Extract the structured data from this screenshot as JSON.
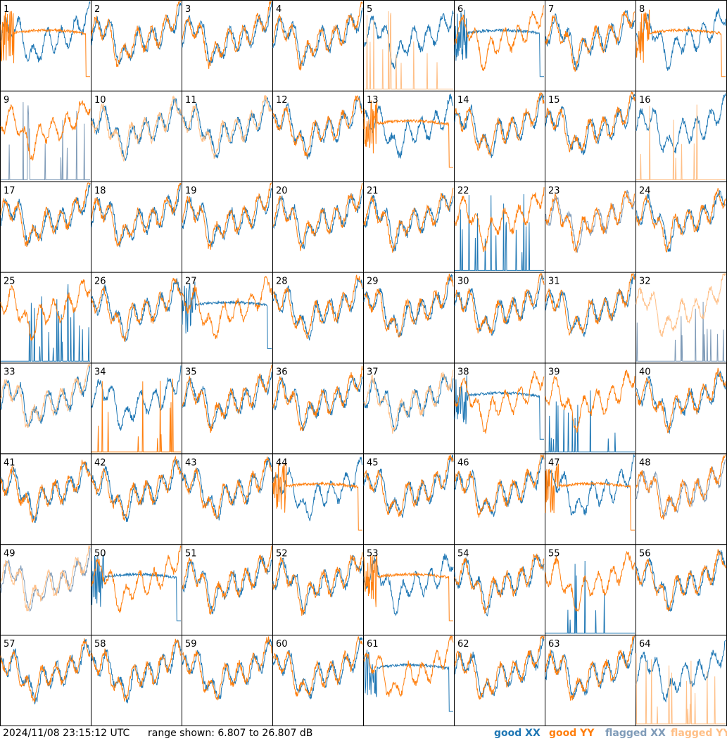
{
  "footer": {
    "timestamp": "2024/11/08 23:15:12 UTC",
    "range_text": "range shown: 6.807 to 26.807 dB"
  },
  "legend": [
    {
      "key": "good_xx",
      "label": "good XX",
      "color": "#1f77b4"
    },
    {
      "key": "good_yy",
      "label": "good YY",
      "color": "#ff7f0e"
    },
    {
      "key": "flagged_xx",
      "label": "flagged XX",
      "color": "#7f9bb8"
    },
    {
      "key": "flagged_yy",
      "label": "flagged YY",
      "color": "#ffbf86"
    }
  ],
  "chart_data": {
    "type": "line",
    "grid_rows": 8,
    "grid_cols": 8,
    "ylim_db": [
      6.807,
      26.807
    ],
    "panels": [
      {
        "id": "1",
        "xx": "good",
        "yy": "good",
        "xx_mode": "normal",
        "yy_mode": "smooth"
      },
      {
        "id": "2",
        "xx": "good",
        "yy": "good",
        "xx_mode": "normal",
        "yy_mode": "normal"
      },
      {
        "id": "3",
        "xx": "good",
        "yy": "good",
        "xx_mode": "normal",
        "yy_mode": "normal"
      },
      {
        "id": "4",
        "xx": "good",
        "yy": "good",
        "xx_mode": "normal",
        "yy_mode": "normal"
      },
      {
        "id": "5",
        "xx": "good",
        "yy": "flagged",
        "xx_mode": "normal",
        "yy_mode": "spiky"
      },
      {
        "id": "6",
        "xx": "good",
        "yy": "good",
        "xx_mode": "smooth",
        "yy_mode": "normal"
      },
      {
        "id": "7",
        "xx": "good",
        "yy": "good",
        "xx_mode": "normal",
        "yy_mode": "normal"
      },
      {
        "id": "8",
        "xx": "good",
        "yy": "good",
        "xx_mode": "normal",
        "yy_mode": "smooth"
      },
      {
        "id": "9",
        "xx": "flagged",
        "yy": "good",
        "xx_mode": "spiky",
        "yy_mode": "normal"
      },
      {
        "id": "10",
        "xx": "good",
        "yy": "flagged",
        "xx_mode": "normal",
        "yy_mode": "normal"
      },
      {
        "id": "11",
        "xx": "good",
        "yy": "flagged",
        "xx_mode": "normal",
        "yy_mode": "normal"
      },
      {
        "id": "12",
        "xx": "good",
        "yy": "good",
        "xx_mode": "normal",
        "yy_mode": "normal"
      },
      {
        "id": "13",
        "xx": "good",
        "yy": "good",
        "xx_mode": "normal",
        "yy_mode": "smooth"
      },
      {
        "id": "14",
        "xx": "good",
        "yy": "good",
        "xx_mode": "normal",
        "yy_mode": "normal"
      },
      {
        "id": "15",
        "xx": "good",
        "yy": "good",
        "xx_mode": "normal",
        "yy_mode": "normal"
      },
      {
        "id": "16",
        "xx": "good",
        "yy": "flagged",
        "xx_mode": "normal",
        "yy_mode": "spiky"
      },
      {
        "id": "17",
        "xx": "good",
        "yy": "good",
        "xx_mode": "normal",
        "yy_mode": "normal"
      },
      {
        "id": "18",
        "xx": "good",
        "yy": "good",
        "xx_mode": "normal",
        "yy_mode": "normal"
      },
      {
        "id": "19",
        "xx": "good",
        "yy": "good",
        "xx_mode": "normal",
        "yy_mode": "normal"
      },
      {
        "id": "20",
        "xx": "good",
        "yy": "good",
        "xx_mode": "normal",
        "yy_mode": "normal"
      },
      {
        "id": "21",
        "xx": "good",
        "yy": "good",
        "xx_mode": "normal",
        "yy_mode": "normal"
      },
      {
        "id": "22",
        "xx": "good",
        "yy": "good",
        "xx_mode": "spiky",
        "yy_mode": "normal"
      },
      {
        "id": "23",
        "xx": "flagged",
        "yy": "good",
        "xx_mode": "normal",
        "yy_mode": "normal"
      },
      {
        "id": "24",
        "xx": "good",
        "yy": "good",
        "xx_mode": "normal",
        "yy_mode": "normal"
      },
      {
        "id": "25",
        "xx": "good",
        "yy": "good",
        "xx_mode": "spiky",
        "yy_mode": "normal"
      },
      {
        "id": "26",
        "xx": "good",
        "yy": "good",
        "xx_mode": "normal",
        "yy_mode": "normal"
      },
      {
        "id": "27",
        "xx": "good",
        "yy": "good",
        "xx_mode": "smooth",
        "yy_mode": "normal"
      },
      {
        "id": "28",
        "xx": "good",
        "yy": "good",
        "xx_mode": "normal",
        "yy_mode": "normal"
      },
      {
        "id": "29",
        "xx": "good",
        "yy": "good",
        "xx_mode": "normal",
        "yy_mode": "normal"
      },
      {
        "id": "30",
        "xx": "good",
        "yy": "good",
        "xx_mode": "normal",
        "yy_mode": "normal"
      },
      {
        "id": "31",
        "xx": "good",
        "yy": "good",
        "xx_mode": "normal",
        "yy_mode": "normal"
      },
      {
        "id": "32",
        "xx": "flagged",
        "yy": "flagged",
        "xx_mode": "spiky",
        "yy_mode": "normal"
      },
      {
        "id": "33",
        "xx": "good",
        "yy": "flagged",
        "xx_mode": "normal",
        "yy_mode": "normal"
      },
      {
        "id": "34",
        "xx": "good",
        "yy": "good",
        "xx_mode": "normal",
        "yy_mode": "spiky"
      },
      {
        "id": "35",
        "xx": "good",
        "yy": "good",
        "xx_mode": "normal",
        "yy_mode": "normal"
      },
      {
        "id": "36",
        "xx": "good",
        "yy": "good",
        "xx_mode": "normal",
        "yy_mode": "normal"
      },
      {
        "id": "37",
        "xx": "good",
        "yy": "flagged",
        "xx_mode": "normal",
        "yy_mode": "normal"
      },
      {
        "id": "38",
        "xx": "good",
        "yy": "good",
        "xx_mode": "smooth",
        "yy_mode": "normal"
      },
      {
        "id": "39",
        "xx": "good",
        "yy": "good",
        "xx_mode": "spiky",
        "yy_mode": "normal"
      },
      {
        "id": "40",
        "xx": "good",
        "yy": "good",
        "xx_mode": "normal",
        "yy_mode": "normal"
      },
      {
        "id": "41",
        "xx": "good",
        "yy": "good",
        "xx_mode": "normal",
        "yy_mode": "normal"
      },
      {
        "id": "42",
        "xx": "good",
        "yy": "good",
        "xx_mode": "normal",
        "yy_mode": "normal"
      },
      {
        "id": "43",
        "xx": "good",
        "yy": "good",
        "xx_mode": "normal",
        "yy_mode": "normal"
      },
      {
        "id": "44",
        "xx": "good",
        "yy": "good",
        "xx_mode": "normal",
        "yy_mode": "smooth"
      },
      {
        "id": "45",
        "xx": "good",
        "yy": "good",
        "xx_mode": "normal",
        "yy_mode": "normal"
      },
      {
        "id": "46",
        "xx": "good",
        "yy": "good",
        "xx_mode": "normal",
        "yy_mode": "normal"
      },
      {
        "id": "47",
        "xx": "good",
        "yy": "good",
        "xx_mode": "normal",
        "yy_mode": "smooth"
      },
      {
        "id": "48",
        "xx": "flagged",
        "yy": "good",
        "xx_mode": "normal",
        "yy_mode": "normal"
      },
      {
        "id": "49",
        "xx": "flagged",
        "yy": "flagged",
        "xx_mode": "normal",
        "yy_mode": "normal"
      },
      {
        "id": "50",
        "xx": "good",
        "yy": "good",
        "xx_mode": "smooth",
        "yy_mode": "normal"
      },
      {
        "id": "51",
        "xx": "good",
        "yy": "good",
        "xx_mode": "normal",
        "yy_mode": "normal"
      },
      {
        "id": "52",
        "xx": "good",
        "yy": "good",
        "xx_mode": "normal",
        "yy_mode": "normal"
      },
      {
        "id": "53",
        "xx": "good",
        "yy": "good",
        "xx_mode": "normal",
        "yy_mode": "smooth"
      },
      {
        "id": "54",
        "xx": "good",
        "yy": "good",
        "xx_mode": "normal",
        "yy_mode": "normal"
      },
      {
        "id": "55",
        "xx": "good",
        "yy": "good",
        "xx_mode": "spiky",
        "yy_mode": "normal"
      },
      {
        "id": "56",
        "xx": "good",
        "yy": "good",
        "xx_mode": "normal",
        "yy_mode": "normal"
      },
      {
        "id": "57",
        "xx": "good",
        "yy": "good",
        "xx_mode": "normal",
        "yy_mode": "normal"
      },
      {
        "id": "58",
        "xx": "good",
        "yy": "good",
        "xx_mode": "normal",
        "yy_mode": "normal"
      },
      {
        "id": "59",
        "xx": "good",
        "yy": "good",
        "xx_mode": "normal",
        "yy_mode": "normal"
      },
      {
        "id": "60",
        "xx": "good",
        "yy": "good",
        "xx_mode": "normal",
        "yy_mode": "normal"
      },
      {
        "id": "61",
        "xx": "good",
        "yy": "good",
        "xx_mode": "smooth",
        "yy_mode": "normal"
      },
      {
        "id": "62",
        "xx": "good",
        "yy": "good",
        "xx_mode": "normal",
        "yy_mode": "normal"
      },
      {
        "id": "63",
        "xx": "good",
        "yy": "good",
        "xx_mode": "normal",
        "yy_mode": "normal"
      },
      {
        "id": "64",
        "xx": "good",
        "yy": "flagged",
        "xx_mode": "normal",
        "yy_mode": "spiky"
      }
    ]
  }
}
